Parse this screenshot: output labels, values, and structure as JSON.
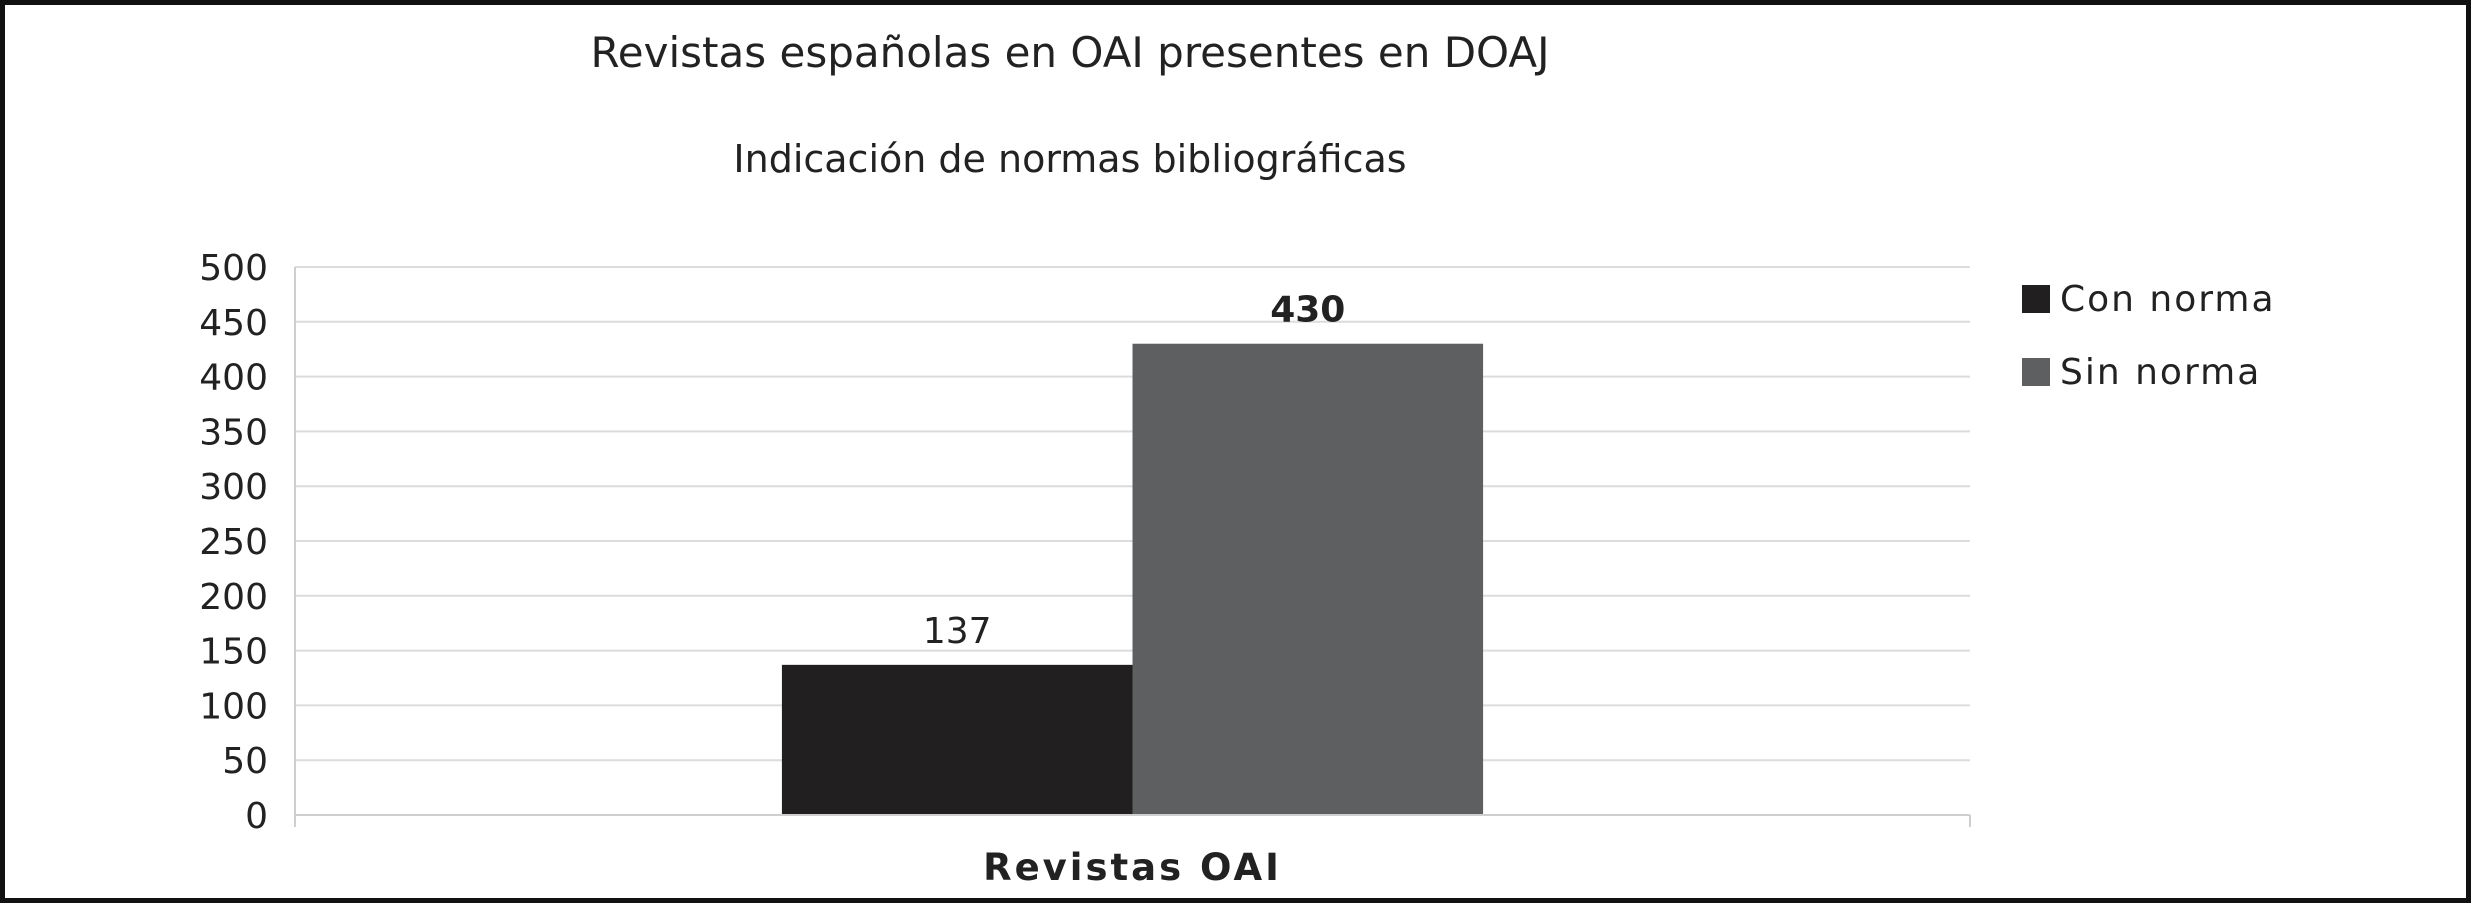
{
  "chart_data": {
    "type": "bar",
    "title": "Revistas españolas en OAI presentes en DOAJ",
    "subtitle": "Indicación de normas bibliográficas",
    "categories": [
      "Revistas OAI"
    ],
    "series": [
      {
        "name": "Con norma",
        "values": [
          137
        ],
        "color": "#221f20",
        "label_bold": false
      },
      {
        "name": "Sin norma",
        "values": [
          430
        ],
        "color": "#5e5f61",
        "label_bold": true
      }
    ],
    "yticks": [
      "0",
      "50",
      "100",
      "150",
      "200",
      "250",
      "300",
      "350",
      "400",
      "450",
      "500"
    ],
    "ylim": [
      0,
      500
    ],
    "grid": true,
    "legend": "right"
  }
}
